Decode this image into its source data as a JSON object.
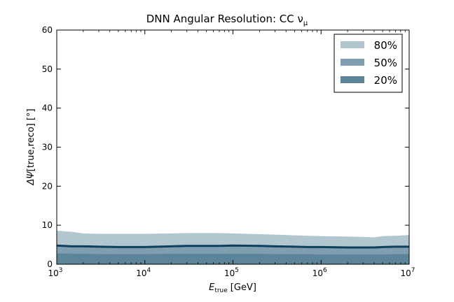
{
  "chart_data": {
    "type": "area",
    "title": "DNN Angular Resolution: CC ν",
    "title_sub": "μ",
    "xlabel_main": "E",
    "xlabel_sub": "true",
    "xlabel_unit": "[GeV]",
    "ylabel_main": "ΔΨ",
    "ylabel_unit": "[true,reco] [°]",
    "x_scale": "log",
    "xlim": [
      1000,
      10000000
    ],
    "ylim": [
      0,
      60
    ],
    "x_ticks": [
      {
        "value": 1000,
        "base": "10",
        "exp": "3"
      },
      {
        "value": 10000,
        "base": "10",
        "exp": "4"
      },
      {
        "value": 100000,
        "base": "10",
        "exp": "5"
      },
      {
        "value": 1000000,
        "base": "10",
        "exp": "6"
      },
      {
        "value": 10000000,
        "base": "10",
        "exp": "7"
      }
    ],
    "y_ticks": [
      0,
      10,
      20,
      30,
      40,
      50,
      60
    ],
    "grid": false,
    "legend_position": "top-right",
    "x": [
      1000,
      1500,
      2000,
      3000,
      5000,
      7000,
      10000,
      20000,
      30000,
      50000,
      70000,
      100000,
      200000,
      300000,
      500000,
      700000,
      1000000,
      2000000,
      3000000,
      4000000,
      5000000,
      7000000,
      10000000
    ],
    "series": [
      {
        "name": "80%",
        "color": "#b2c6d0",
        "values": [
          8.6,
          8.3,
          7.9,
          7.8,
          7.8,
          7.8,
          7.8,
          7.9,
          8.0,
          8.0,
          8.0,
          7.9,
          7.7,
          7.6,
          7.4,
          7.3,
          7.2,
          7.1,
          7.0,
          6.9,
          7.2,
          7.3,
          7.5
        ]
      },
      {
        "name": "50%",
        "color": "#7f9fb0",
        "values": [
          4.9,
          4.7,
          4.6,
          4.5,
          4.4,
          4.4,
          4.4,
          4.6,
          4.7,
          4.7,
          4.7,
          4.8,
          4.7,
          4.6,
          4.5,
          4.4,
          4.4,
          4.3,
          4.3,
          4.3,
          4.4,
          4.5,
          4.6
        ]
      },
      {
        "name": "20%",
        "color": "#5c8599",
        "values": [
          2.8,
          2.7,
          2.7,
          2.6,
          2.6,
          2.6,
          2.6,
          2.7,
          2.7,
          2.7,
          2.7,
          2.7,
          2.7,
          2.6,
          2.6,
          2.6,
          2.5,
          2.5,
          2.5,
          2.5,
          2.5,
          2.6,
          2.6
        ]
      }
    ],
    "median_line": {
      "color": "#0e3f5c",
      "values": [
        4.8,
        4.6,
        4.6,
        4.5,
        4.4,
        4.4,
        4.4,
        4.6,
        4.7,
        4.7,
        4.7,
        4.8,
        4.7,
        4.6,
        4.5,
        4.4,
        4.4,
        4.3,
        4.3,
        4.3,
        4.4,
        4.5,
        4.5
      ]
    }
  }
}
